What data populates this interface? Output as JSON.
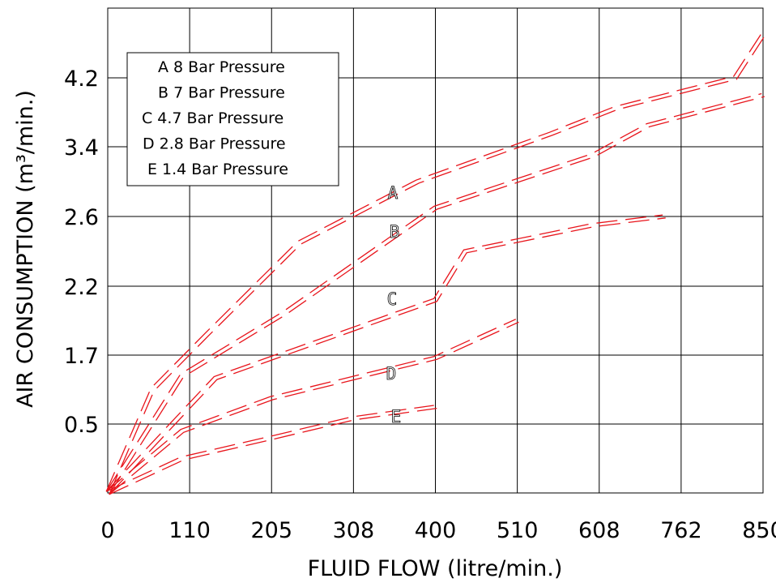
{
  "chart_data": {
    "type": "line",
    "xlabel": "FLUID FLOW (litre/min.)",
    "ylabel": "AIR CONSUMPTION (m³/min.)",
    "x_ticks": [
      "0",
      "110",
      "205",
      "308",
      "400",
      "510",
      "608",
      "762",
      "850"
    ],
    "y_ticks": [
      "0.5",
      "1.7",
      "2.2",
      "2.6",
      "3.4",
      "4.2"
    ],
    "grid": true,
    "legend_position": "top-left",
    "legend": [
      "A  8 Bar Pressure",
      "B  7 Bar Pressure",
      "C 4.7 Bar Pressure",
      "D 2.8 Bar Pressure",
      "E 1.4 Bar Pressure"
    ],
    "series": [
      {
        "name": "A",
        "points": [
          [
            0,
            0
          ],
          [
            60,
            1.1
          ],
          [
            130,
            1.85
          ],
          [
            240,
            2.45
          ],
          [
            380,
            3.0
          ],
          [
            550,
            3.55
          ],
          [
            640,
            3.85
          ],
          [
            820,
            4.2
          ],
          [
            850,
            4.7
          ]
        ]
      },
      {
        "name": "B",
        "points": [
          [
            0,
            0
          ],
          [
            100,
            1.35
          ],
          [
            220,
            2.0
          ],
          [
            400,
            2.7
          ],
          [
            600,
            3.3
          ],
          [
            700,
            3.65
          ],
          [
            850,
            4.0
          ]
        ]
      },
      {
        "name": "C",
        "points": [
          [
            0,
            0
          ],
          [
            140,
            1.3
          ],
          [
            400,
            2.1
          ],
          [
            440,
            2.4
          ],
          [
            600,
            2.55
          ],
          [
            730,
            2.6
          ]
        ]
      },
      {
        "name": "D",
        "points": [
          [
            0,
            0
          ],
          [
            100,
            0.45
          ],
          [
            205,
            0.95
          ],
          [
            400,
            1.65
          ],
          [
            510,
            1.95
          ]
        ]
      },
      {
        "name": "E",
        "points": [
          [
            0,
            0
          ],
          [
            100,
            0.25
          ],
          [
            205,
            0.4
          ],
          [
            308,
            0.6
          ],
          [
            400,
            0.8
          ]
        ]
      }
    ],
    "curve_labels": [
      "A",
      "B",
      "C",
      "D",
      "E"
    ],
    "colors": {
      "curve": "#e8141b",
      "grid": "#000000"
    }
  }
}
